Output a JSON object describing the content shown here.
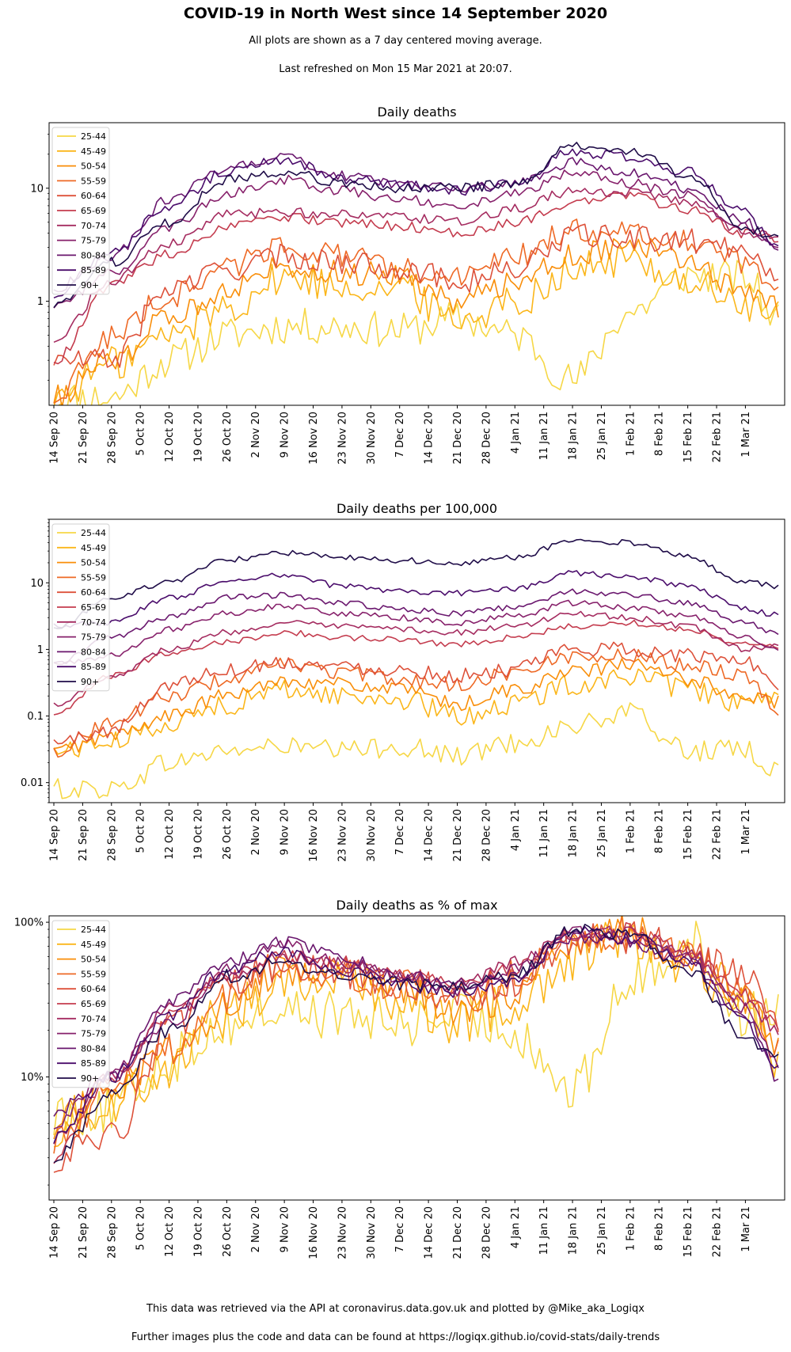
{
  "title": "COVID-19 in North West since 14 September 2020",
  "subtitle_1": "All plots are shown as a 7 day centered moving average.",
  "subtitle_2": "Last refreshed on Mon 15 Mar 2021 at 20:07.",
  "footer_1": "This data was retrieved via the API at coronavirus.data.gov.uk and plotted by @Mike_aka_Logiqx",
  "footer_2": "Further images plus the code and data can be found at https://logiqx.github.io/covid-stats/daily-trends",
  "colors": {
    "25-44": "#f6d746",
    "45-49": "#fbb61a",
    "50-54": "#f98e09",
    "55-59": "#ee6925",
    "60-64": "#dd513a",
    "65-69": "#c43c4e",
    "70-74": "#a52c60",
    "75-79": "#87216b",
    "80-84": "#6a176e",
    "85-89": "#4a0c6b",
    "90+": "#1f0c48"
  },
  "chart_data": [
    {
      "type": "line",
      "title": "Daily deaths",
      "xlabel": "",
      "ylabel": "",
      "yscale": "log",
      "ylim": [
        0.12,
        38
      ],
      "yticks": [
        1,
        10
      ],
      "ytick_labels": [
        "1",
        "10"
      ],
      "x_start": "14 Sep 20",
      "x_end": "9 Mar 21",
      "x_tick_labels": [
        "14 Sep 20",
        "21 Sep 20",
        "28 Sep 20",
        "5 Oct 20",
        "12 Oct 20",
        "19 Oct 20",
        "26 Oct 20",
        "2 Nov 20",
        "9 Nov 20",
        "16 Nov 20",
        "23 Nov 20",
        "30 Nov 20",
        "7 Dec 20",
        "14 Dec 20",
        "21 Dec 20",
        "28 Dec 20",
        "4 Jan 21",
        "11 Jan 21",
        "18 Jan 21",
        "25 Jan 21",
        "1 Feb 21",
        "8 Feb 21",
        "15 Feb 21",
        "22 Feb 21",
        "1 Mar 21"
      ],
      "x_keys": [
        "14 Sep 20",
        "28 Sep 20",
        "12 Oct 20",
        "26 Oct 20",
        "9 Nov 20",
        "23 Nov 20",
        "7 Dec 20",
        "21 Dec 20",
        "4 Jan 21",
        "18 Jan 21",
        "1 Feb 21",
        "15 Feb 21",
        "1 Mar 21",
        "9 Mar 21"
      ],
      "legend_position": "upper-left",
      "grid": false,
      "series": [
        {
          "name": "25-44",
          "values": [
            0.14,
            0.14,
            0.3,
            0.5,
            0.6,
            0.6,
            0.55,
            0.7,
            0.5,
            0.2,
            0.8,
            1.7,
            1.6,
            0.7
          ]
        },
        {
          "name": "45-49",
          "values": [
            0.14,
            0.28,
            0.5,
            0.9,
            1.6,
            1.4,
            1.3,
            0.7,
            1.0,
            1.9,
            2.3,
            1.5,
            0.9,
            0.7
          ]
        },
        {
          "name": "50-54",
          "values": [
            0.14,
            0.3,
            0.7,
            1.3,
            2.1,
            1.8,
            1.7,
            1.0,
            1.5,
            2.6,
            3.2,
            2.2,
            1.2,
            0.9
          ]
        },
        {
          "name": "55-59",
          "values": [
            0.14,
            0.5,
            1.1,
            2.0,
            3.2,
            2.5,
            1.9,
            1.6,
            2.5,
            4.2,
            4.2,
            3.4,
            2.1,
            1.6
          ]
        },
        {
          "name": "60-64",
          "values": [
            0.3,
            0.3,
            1.3,
            1.9,
            2.5,
            2.2,
            2.0,
            1.5,
            1.9,
            3.8,
            3.6,
            3.4,
            3.0,
            1.8
          ]
        },
        {
          "name": "65-69",
          "values": [
            0.3,
            1.4,
            2.6,
            4.5,
            5.5,
            5.0,
            4.6,
            4.0,
            5.0,
            7.5,
            8.5,
            6.5,
            4.0,
            3.5
          ]
        },
        {
          "name": "70-74",
          "values": [
            0.45,
            1.5,
            3.2,
            5.8,
            6.2,
            5.8,
            5.5,
            5.0,
            6.5,
            9.5,
            9.0,
            7.5,
            4.0,
            3.8
          ]
        },
        {
          "name": "75-79",
          "values": [
            0.9,
            1.8,
            4.5,
            9.0,
            12,
            9.5,
            8.0,
            7.0,
            9.0,
            14,
            11,
            8.5,
            4.5,
            3.0
          ]
        },
        {
          "name": "80-84",
          "values": [
            1.3,
            2.5,
            8.0,
            15,
            19,
            13,
            11,
            10,
            11,
            17,
            14,
            10,
            5.0,
            2.8
          ]
        },
        {
          "name": "85-89",
          "values": [
            1.1,
            2.7,
            7.0,
            14,
            18,
            12,
            11,
            9.5,
            11,
            21,
            19,
            14,
            6.0,
            3.0
          ]
        },
        {
          "name": "90+",
          "values": [
            0.9,
            2.2,
            5.0,
            12,
            14,
            11,
            10,
            10,
            11,
            23,
            22,
            13,
            4.5,
            3.6
          ]
        }
      ]
    },
    {
      "type": "line",
      "title": "Daily deaths per 100,000",
      "xlabel": "",
      "ylabel": "",
      "yscale": "log",
      "ylim": [
        0.005,
        90
      ],
      "yticks": [
        0.01,
        0.1,
        1,
        10
      ],
      "ytick_labels": [
        "0.01",
        "0.1",
        "1",
        "10"
      ],
      "x_start": "14 Sep 20",
      "x_end": "9 Mar 21",
      "x_tick_labels": [
        "14 Sep 20",
        "21 Sep 20",
        "28 Sep 20",
        "5 Oct 20",
        "12 Oct 20",
        "19 Oct 20",
        "26 Oct 20",
        "2 Nov 20",
        "9 Nov 20",
        "16 Nov 20",
        "23 Nov 20",
        "30 Nov 20",
        "7 Dec 20",
        "14 Dec 20",
        "21 Dec 20",
        "28 Dec 20",
        "4 Jan 21",
        "11 Jan 21",
        "18 Jan 21",
        "25 Jan 21",
        "1 Feb 21",
        "8 Feb 21",
        "15 Feb 21",
        "22 Feb 21",
        "1 Mar 21"
      ],
      "x_keys": [
        "14 Sep 20",
        "28 Sep 20",
        "12 Oct 20",
        "26 Oct 20",
        "9 Nov 20",
        "23 Nov 20",
        "7 Dec 20",
        "21 Dec 20",
        "4 Jan 21",
        "18 Jan 21",
        "1 Feb 21",
        "15 Feb 21",
        "1 Mar 21",
        "9 Mar 21"
      ],
      "legend_position": "upper-left",
      "grid": false,
      "series": [
        {
          "name": "25-44",
          "values": [
            0.008,
            0.008,
            0.02,
            0.03,
            0.035,
            0.03,
            0.035,
            0.025,
            0.04,
            0.07,
            0.11,
            0.03,
            0.03,
            0.015
          ]
        },
        {
          "name": "45-49",
          "values": [
            0.03,
            0.04,
            0.08,
            0.15,
            0.25,
            0.2,
            0.18,
            0.1,
            0.15,
            0.3,
            0.4,
            0.25,
            0.15,
            0.16
          ]
        },
        {
          "name": "50-54",
          "values": [
            0.03,
            0.05,
            0.1,
            0.2,
            0.35,
            0.3,
            0.25,
            0.15,
            0.25,
            0.45,
            0.6,
            0.35,
            0.2,
            0.16
          ]
        },
        {
          "name": "55-59",
          "values": [
            0.03,
            0.08,
            0.2,
            0.35,
            0.6,
            0.45,
            0.35,
            0.3,
            0.45,
            0.8,
            0.8,
            0.6,
            0.4,
            0.13
          ]
        },
        {
          "name": "60-64",
          "values": [
            0.04,
            0.06,
            0.3,
            0.5,
            0.65,
            0.55,
            0.5,
            0.4,
            0.5,
            1.0,
            1.0,
            0.8,
            0.7,
            0.3
          ]
        },
        {
          "name": "65-69",
          "values": [
            0.1,
            0.4,
            0.9,
            1.3,
            1.8,
            1.5,
            1.4,
            1.2,
            1.5,
            2.2,
            2.5,
            2.0,
            1.2,
            1.1
          ]
        },
        {
          "name": "70-74",
          "values": [
            0.15,
            0.4,
            1.0,
            1.8,
            2.5,
            2.2,
            2.0,
            1.8,
            2.2,
            3.5,
            3.0,
            2.2,
            1.0,
            1.2
          ]
        },
        {
          "name": "75-79",
          "values": [
            0.6,
            0.8,
            2.0,
            3.5,
            4.5,
            3.5,
            3.0,
            2.5,
            3.2,
            5.0,
            4.2,
            3.2,
            1.5,
            1.0
          ]
        },
        {
          "name": "80-84",
          "values": [
            0.6,
            1.5,
            3.0,
            6.0,
            6.5,
            5.0,
            4.0,
            3.5,
            4.2,
            7.5,
            6.5,
            5.0,
            2.5,
            1.7
          ]
        },
        {
          "name": "85-89",
          "values": [
            2.3,
            2.5,
            6.0,
            10,
            13,
            9.0,
            7.5,
            7.0,
            8.0,
            14,
            12,
            9.0,
            4.0,
            3.3
          ]
        },
        {
          "name": "90+",
          "values": [
            2.0,
            6.0,
            10,
            22,
            28,
            24,
            22,
            20,
            24,
            42,
            40,
            25,
            10,
            9.0
          ]
        }
      ]
    },
    {
      "type": "line",
      "title": "Daily deaths as % of max",
      "xlabel": "",
      "ylabel": "",
      "yscale": "log",
      "ylim": [
        1.6,
        110
      ],
      "yticks": [
        10,
        100
      ],
      "ytick_labels": [
        "10%",
        "100%"
      ],
      "x_start": "14 Sep 20",
      "x_end": "9 Mar 21",
      "x_tick_labels": [
        "14 Sep 20",
        "21 Sep 20",
        "28 Sep 20",
        "5 Oct 20",
        "12 Oct 20",
        "19 Oct 20",
        "26 Oct 20",
        "2 Nov 20",
        "9 Nov 20",
        "16 Nov 20",
        "23 Nov 20",
        "30 Nov 20",
        "7 Dec 20",
        "14 Dec 20",
        "21 Dec 20",
        "28 Dec 20",
        "4 Jan 21",
        "11 Jan 21",
        "18 Jan 21",
        "25 Jan 21",
        "1 Feb 21",
        "8 Feb 21",
        "15 Feb 21",
        "22 Feb 21",
        "1 Mar 21"
      ],
      "x_keys": [
        "14 Sep 20",
        "28 Sep 20",
        "12 Oct 20",
        "26 Oct 20",
        "9 Nov 20",
        "23 Nov 20",
        "7 Dec 20",
        "21 Dec 20",
        "4 Jan 21",
        "18 Jan 21",
        "1 Feb 21",
        "15 Feb 21",
        "1 Mar 21",
        "9 Mar 21"
      ],
      "legend_position": "upper-left",
      "grid": false,
      "series": [
        {
          "name": "25-44",
          "values": [
            6,
            6,
            13,
            22,
            27,
            25,
            22,
            25,
            20,
            8,
            40,
            77,
            25,
            30
          ]
        },
        {
          "name": "45-49",
          "values": [
            5,
            7,
            12,
            25,
            45,
            40,
            32,
            22,
            30,
            60,
            85,
            50,
            35,
            12
          ]
        },
        {
          "name": "50-54",
          "values": [
            5,
            9,
            14,
            28,
            50,
            45,
            38,
            25,
            35,
            70,
            92,
            55,
            30,
            15
          ]
        },
        {
          "name": "55-59",
          "values": [
            4,
            8,
            15,
            33,
            55,
            45,
            40,
            30,
            45,
            80,
            85,
            60,
            35,
            14
          ]
        },
        {
          "name": "60-64",
          "values": [
            3,
            4,
            20,
            38,
            55,
            48,
            42,
            33,
            40,
            75,
            80,
            65,
            45,
            25
          ]
        },
        {
          "name": "65-69",
          "values": [
            3,
            10,
            25,
            45,
            60,
            55,
            45,
            40,
            50,
            80,
            90,
            65,
            35,
            22
          ]
        },
        {
          "name": "70-74",
          "values": [
            4,
            10,
            28,
            45,
            60,
            52,
            45,
            38,
            55,
            85,
            85,
            65,
            30,
            20
          ]
        },
        {
          "name": "75-79",
          "values": [
            5,
            11,
            22,
            50,
            70,
            55,
            45,
            35,
            50,
            85,
            80,
            60,
            28,
            12
          ]
        },
        {
          "name": "80-84",
          "values": [
            6,
            10,
            30,
            55,
            75,
            60,
            45,
            40,
            45,
            80,
            75,
            55,
            25,
            10
          ]
        },
        {
          "name": "85-89",
          "values": [
            4,
            10,
            25,
            50,
            65,
            48,
            40,
            35,
            42,
            85,
            80,
            55,
            22,
            12
          ]
        },
        {
          "name": "90+",
          "values": [
            3,
            8,
            20,
            45,
            55,
            45,
            40,
            38,
            45,
            90,
            85,
            50,
            18,
            14
          ]
        }
      ]
    }
  ]
}
